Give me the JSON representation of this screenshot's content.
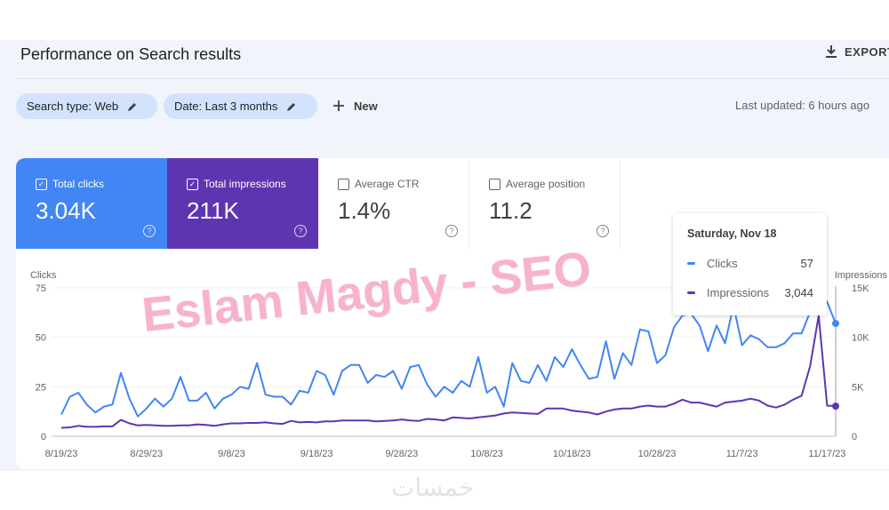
{
  "header": {
    "title": "Performance on Search results",
    "export_label": "EXPORT",
    "export_icon": "download-icon"
  },
  "filters": {
    "chips": [
      {
        "label": "Search type: Web",
        "icon": "pencil-icon"
      },
      {
        "label": "Date: Last 3 months",
        "icon": "pencil-icon"
      }
    ],
    "new_label": "New",
    "last_updated": "Last updated: 6 hours ago"
  },
  "metrics": [
    {
      "label": "Total clicks",
      "value": "3.04K",
      "checked": true,
      "color": "#4285f4"
    },
    {
      "label": "Total impressions",
      "value": "211K",
      "checked": true,
      "color": "#5e35b1"
    },
    {
      "label": "Average CTR",
      "value": "1.4%",
      "checked": false
    },
    {
      "label": "Average position",
      "value": "11.2",
      "checked": false
    }
  ],
  "tooltip": {
    "date": "Saturday, Nov 18",
    "rows": [
      {
        "label": "Clicks",
        "value": "57",
        "color": "#4285f4"
      },
      {
        "label": "Impressions",
        "value": "3,044",
        "color": "#5e35b1"
      }
    ]
  },
  "chart_data": {
    "type": "line",
    "y_left_label": "Clicks",
    "y_right_label": "Impressions",
    "y_left_ticks": [
      "0",
      "25",
      "50",
      "75"
    ],
    "y_left_lim": [
      0,
      75
    ],
    "y_right_ticks": [
      "0",
      "5K",
      "10K",
      "15K"
    ],
    "y_right_lim": [
      0,
      15000
    ],
    "x_ticks": [
      "8/19/23",
      "8/29/23",
      "9/8/23",
      "9/18/23",
      "9/28/23",
      "10/8/23",
      "10/18/23",
      "10/28/23",
      "11/7/23",
      "11/17/23"
    ],
    "grid": true,
    "x": [
      "8/19/23",
      "8/20/23",
      "8/21/23",
      "8/22/23",
      "8/23/23",
      "8/24/23",
      "8/25/23",
      "8/26/23",
      "8/27/23",
      "8/28/23",
      "8/29/23",
      "8/30/23",
      "8/31/23",
      "9/1/23",
      "9/2/23",
      "9/3/23",
      "9/4/23",
      "9/5/23",
      "9/6/23",
      "9/7/23",
      "9/8/23",
      "9/9/23",
      "9/10/23",
      "9/11/23",
      "9/12/23",
      "9/13/23",
      "9/14/23",
      "9/15/23",
      "9/16/23",
      "9/17/23",
      "9/18/23",
      "9/19/23",
      "9/20/23",
      "9/21/23",
      "9/22/23",
      "9/23/23",
      "9/24/23",
      "9/25/23",
      "9/26/23",
      "9/27/23",
      "9/28/23",
      "9/29/23",
      "9/30/23",
      "10/1/23",
      "10/2/23",
      "10/3/23",
      "10/4/23",
      "10/5/23",
      "10/6/23",
      "10/7/23",
      "10/8/23",
      "10/9/23",
      "10/10/23",
      "10/11/23",
      "10/12/23",
      "10/13/23",
      "10/14/23",
      "10/15/23",
      "10/16/23",
      "10/17/23",
      "10/18/23",
      "10/19/23",
      "10/20/23",
      "10/21/23",
      "10/22/23",
      "10/23/23",
      "10/24/23",
      "10/25/23",
      "10/26/23",
      "10/27/23",
      "10/28/23",
      "10/29/23",
      "10/30/23",
      "10/31/23",
      "11/1/23",
      "11/2/23",
      "11/3/23",
      "11/4/23",
      "11/5/23",
      "11/6/23",
      "11/7/23",
      "11/8/23",
      "11/9/23",
      "11/10/23",
      "11/11/23",
      "11/12/23",
      "11/13/23",
      "11/14/23",
      "11/15/23",
      "11/16/23",
      "11/17/23",
      "11/18/23"
    ],
    "series": [
      {
        "name": "Clicks",
        "axis": "left",
        "color": "#4285f4",
        "values": [
          11,
          20,
          22,
          16,
          12,
          15,
          16,
          32,
          19,
          10,
          14,
          19,
          15,
          19,
          30,
          18,
          18,
          22,
          14,
          19,
          21,
          25,
          24,
          37,
          21,
          20,
          20,
          16,
          23,
          22,
          33,
          31,
          21,
          33,
          36,
          36,
          27,
          31,
          30,
          33,
          24,
          35,
          36,
          26,
          20,
          25,
          22,
          28,
          25,
          40,
          22,
          25,
          15,
          37,
          28,
          27,
          36,
          28,
          40,
          35,
          44,
          36,
          29,
          30,
          48,
          29,
          42,
          36,
          54,
          53,
          37,
          41,
          55,
          61,
          62,
          56,
          43,
          56,
          47,
          66,
          46,
          51,
          49,
          45,
          45,
          47,
          52,
          52,
          63,
          72,
          68,
          57
        ]
      },
      {
        "name": "Impressions",
        "axis": "right",
        "color": "#5e35b1",
        "values": [
          850,
          900,
          1050,
          950,
          950,
          1000,
          1000,
          1650,
          1300,
          1100,
          1150,
          1100,
          1050,
          1050,
          1100,
          1100,
          1200,
          1150,
          1050,
          1200,
          1300,
          1300,
          1350,
          1350,
          1400,
          1300,
          1250,
          1550,
          1400,
          1450,
          1400,
          1500,
          1500,
          1600,
          1600,
          1600,
          1600,
          1500,
          1550,
          1600,
          1700,
          1600,
          1550,
          1750,
          1700,
          1600,
          1900,
          1850,
          1800,
          1900,
          2000,
          2100,
          2300,
          2400,
          2350,
          2300,
          2250,
          2800,
          2800,
          2800,
          2600,
          2500,
          2400,
          2200,
          2500,
          2700,
          2800,
          2800,
          3000,
          3100,
          3000,
          3000,
          3300,
          3700,
          3400,
          3400,
          3200,
          3000,
          3400,
          3500,
          3600,
          3800,
          3600,
          3100,
          2900,
          3200,
          3700,
          4100,
          7100,
          12200,
          3100,
          3044
        ]
      }
    ]
  },
  "watermarks": {
    "overlay": "Eslam Magdy - SEO",
    "site": "خمسات"
  }
}
